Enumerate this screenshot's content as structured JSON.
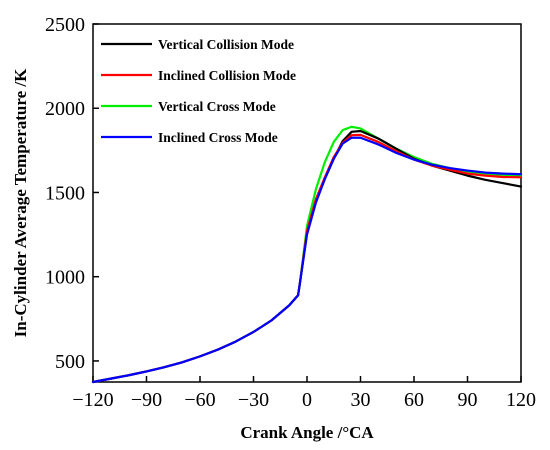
{
  "chart_data": {
    "type": "line",
    "xlabel": "Crank Angle /°CA",
    "ylabel": "In-Cylinder Average Temperature /K",
    "xlim": [
      -120,
      120
    ],
    "ylim": [
      375,
      2500
    ],
    "xticks": [
      -120,
      -90,
      -60,
      -30,
      0,
      30,
      60,
      90,
      120
    ],
    "yticks": [
      500,
      1000,
      1500,
      2000,
      2500
    ],
    "grid": false,
    "legend_position": "top-left",
    "series": [
      {
        "name": "Vertical Collision Mode",
        "color": "#000000",
        "x": [
          -120,
          -110,
          -100,
          -90,
          -80,
          -70,
          -60,
          -50,
          -40,
          -30,
          -20,
          -10,
          -5,
          -4,
          0,
          5,
          10,
          15,
          20,
          25,
          30,
          40,
          50,
          60,
          70,
          80,
          90,
          100,
          110,
          120
        ],
        "y": [
          375,
          395,
          415,
          438,
          463,
          492,
          527,
          567,
          615,
          672,
          740,
          830,
          890,
          960,
          1260,
          1450,
          1580,
          1700,
          1805,
          1860,
          1865,
          1820,
          1760,
          1700,
          1660,
          1630,
          1600,
          1575,
          1555,
          1535
        ]
      },
      {
        "name": "Inclined Collision Mode",
        "color": "#ff0000",
        "x": [
          -120,
          -110,
          -100,
          -90,
          -80,
          -70,
          -60,
          -50,
          -40,
          -30,
          -20,
          -10,
          -5,
          -4,
          0,
          5,
          10,
          15,
          20,
          25,
          30,
          40,
          50,
          60,
          70,
          80,
          90,
          100,
          110,
          120
        ],
        "y": [
          375,
          395,
          415,
          438,
          463,
          492,
          527,
          567,
          615,
          672,
          740,
          830,
          890,
          960,
          1270,
          1460,
          1590,
          1710,
          1795,
          1840,
          1842,
          1800,
          1745,
          1695,
          1660,
          1635,
          1612,
          1600,
          1592,
          1590
        ]
      },
      {
        "name": "Vertical Cross Mode",
        "color": "#00ee00",
        "x": [
          -120,
          -110,
          -100,
          -90,
          -80,
          -70,
          -60,
          -50,
          -40,
          -30,
          -20,
          -10,
          -5,
          -4,
          0,
          5,
          10,
          15,
          20,
          25,
          30,
          40,
          50,
          60,
          70,
          80,
          90,
          100,
          110,
          120
        ],
        "y": [
          375,
          395,
          415,
          438,
          463,
          492,
          527,
          567,
          615,
          672,
          740,
          830,
          890,
          960,
          1300,
          1520,
          1680,
          1800,
          1870,
          1890,
          1880,
          1820,
          1760,
          1710,
          1670,
          1645,
          1625,
          1612,
          1605,
          1600
        ]
      },
      {
        "name": "Inclined Cross Mode",
        "color": "#0000ff",
        "x": [
          -120,
          -110,
          -100,
          -90,
          -80,
          -70,
          -60,
          -50,
          -40,
          -30,
          -20,
          -10,
          -5,
          -4,
          0,
          5,
          10,
          15,
          20,
          25,
          30,
          40,
          50,
          60,
          70,
          80,
          90,
          100,
          110,
          120
        ],
        "y": [
          375,
          395,
          415,
          438,
          463,
          492,
          527,
          567,
          615,
          672,
          740,
          830,
          890,
          960,
          1250,
          1440,
          1580,
          1700,
          1790,
          1825,
          1825,
          1785,
          1735,
          1695,
          1665,
          1645,
          1630,
          1618,
          1612,
          1608
        ]
      }
    ]
  }
}
